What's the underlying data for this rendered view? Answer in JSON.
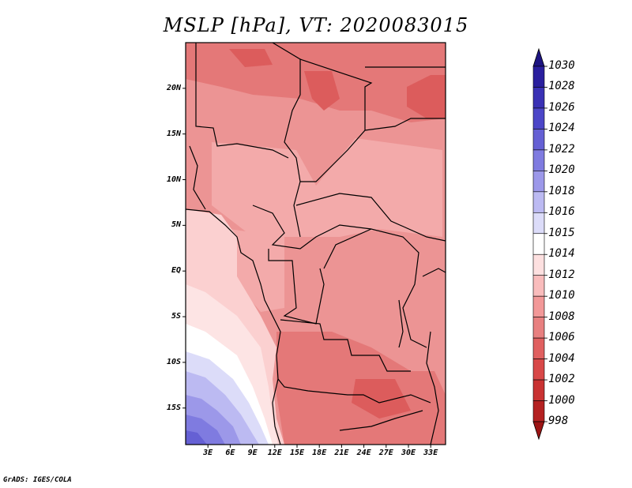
{
  "title": "MSLP [hPa], VT: 2020083015",
  "credit": "GrADS: IGES/COLA",
  "map": {
    "lat_labels": [
      "20N",
      "15N",
      "10N",
      "5N",
      "EQ",
      "5S",
      "10S",
      "15S"
    ],
    "lat_values": [
      20,
      15,
      10,
      5,
      0,
      -5,
      -10,
      -15
    ],
    "lon_labels": [
      "3E",
      "6E",
      "9E",
      "12E",
      "15E",
      "18E",
      "21E",
      "24E",
      "27E",
      "30E",
      "33E"
    ],
    "lon_values": [
      3,
      6,
      9,
      12,
      15,
      18,
      21,
      24,
      27,
      30,
      33
    ],
    "lon_range": [
      0,
      35
    ],
    "lat_range": [
      -19,
      25
    ],
    "field": "Mean sea level pressure"
  },
  "colorbar": {
    "levels": [
      "1030",
      "1028",
      "1026",
      "1024",
      "1022",
      "1020",
      "1018",
      "1016",
      "1015",
      "1014",
      "1012",
      "1010",
      "1008",
      "1006",
      "1004",
      "1002",
      "1000",
      "998"
    ],
    "colors": [
      "#1d1482",
      "#2a1f9e",
      "#3a31b5",
      "#4c46c8",
      "#6560d4",
      "#7f7be0",
      "#9c98e9",
      "#bcbaf2",
      "#dcdcf9",
      "#ffffff",
      "#fde0e0",
      "#f9bcbc",
      "#f29898",
      "#e88080",
      "#e06060",
      "#d84848",
      "#c93232",
      "#b42121",
      "#9c1414"
    ]
  }
}
